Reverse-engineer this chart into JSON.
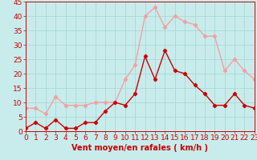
{
  "x": [
    0,
    1,
    2,
    3,
    4,
    5,
    6,
    7,
    8,
    9,
    10,
    11,
    12,
    13,
    14,
    15,
    16,
    17,
    18,
    19,
    20,
    21,
    22,
    23
  ],
  "wind_avg": [
    1,
    3,
    1,
    4,
    1,
    1,
    3,
    3,
    7,
    10,
    9,
    13,
    26,
    18,
    28,
    21,
    20,
    16,
    13,
    9,
    9,
    13,
    9,
    8
  ],
  "wind_gust": [
    8,
    8,
    6,
    12,
    9,
    9,
    9,
    10,
    10,
    10,
    18,
    23,
    40,
    43,
    36,
    40,
    38,
    37,
    33,
    33,
    21,
    25,
    21,
    18
  ],
  "avg_color": "#cc0000",
  "gust_color": "#f4a0a0",
  "bg_color": "#c8ecec",
  "grid_color": "#a8d8d8",
  "axis_color": "#cc0000",
  "xlabel": "Vent moyen/en rafales ( km/h )",
  "ylim": [
    0,
    45
  ],
  "yticks": [
    0,
    5,
    10,
    15,
    20,
    25,
    30,
    35,
    40,
    45
  ],
  "xticks": [
    0,
    1,
    2,
    3,
    4,
    5,
    6,
    7,
    8,
    9,
    10,
    11,
    12,
    13,
    14,
    15,
    16,
    17,
    18,
    19,
    20,
    21,
    22,
    23
  ],
  "xlabel_fontsize": 7,
  "tick_fontsize": 6.5
}
